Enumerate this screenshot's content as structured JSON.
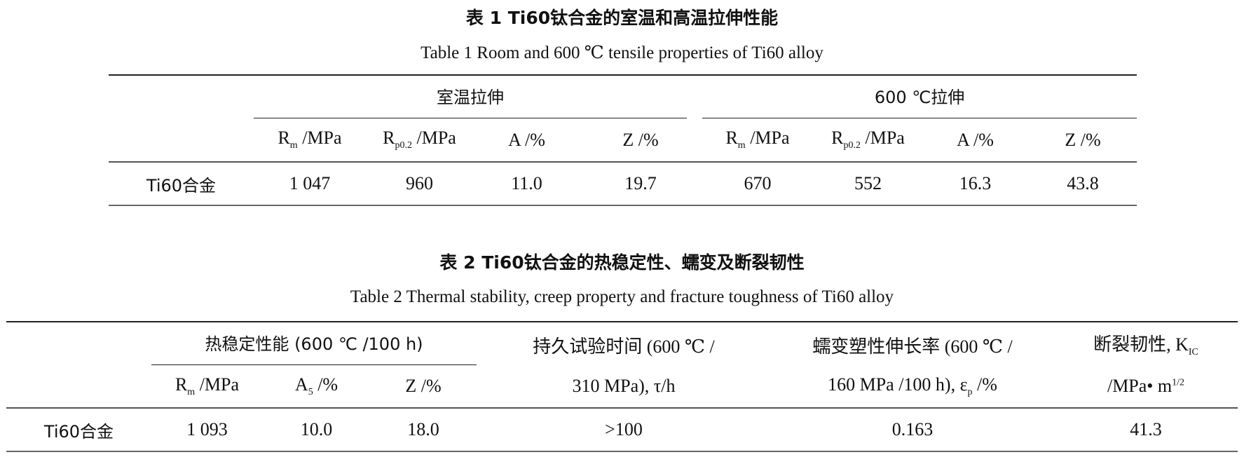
{
  "table1": {
    "title_cn": "表 1  Ti60钛合金的室温和高温拉伸性能",
    "title_en": "Table 1   Room and 600 ℃  tensile properties of Ti60 alloy",
    "groups": [
      "室温拉伸",
      "600 ℃拉伸"
    ],
    "columns": [
      {
        "base": "R",
        "sub": "m",
        "unit": " /MPa"
      },
      {
        "base": "R",
        "sub": "p0.2",
        "unit": " /MPa"
      },
      {
        "base": "A",
        "sub": "",
        "unit": " /%"
      },
      {
        "base": "Z",
        "sub": "",
        "unit": " /%"
      },
      {
        "base": "R",
        "sub": "m",
        "unit": " /MPa"
      },
      {
        "base": "R",
        "sub": "p0.2",
        "unit": " /MPa"
      },
      {
        "base": "A",
        "sub": "",
        "unit": " /%"
      },
      {
        "base": "Z",
        "sub": "",
        "unit": " /%"
      }
    ],
    "row_label": "Ti60合金",
    "values": [
      "1 047",
      "960",
      "11.0",
      "19.7",
      "670",
      "552",
      "16.3",
      "43.8"
    ]
  },
  "table2": {
    "title_cn": "表 2  Ti60钛合金的热稳定性、蠕变及断裂韧性",
    "title_en": "Table 2   Thermal stability,  creep property and fracture toughness of Ti60 alloy",
    "group": "热稳定性能 (600 ℃ /100 h)",
    "columns": [
      {
        "base": "R",
        "sub": "m",
        "unit": " /MPa"
      },
      {
        "base": "A",
        "sub": "5",
        "unit": " /%"
      },
      {
        "base": "Z",
        "sub": "",
        "unit": " /%"
      }
    ],
    "col_endurance": {
      "line1": "持久试验时间 (600 ℃ /",
      "line2": "310 MPa),  τ/h"
    },
    "col_creep": {
      "line1": "蠕变塑性伸长率 (600 ℃ /",
      "line2a": "160 MPa /100 h),  ε",
      "line2sub": "p",
      "line2b": " /%"
    },
    "col_toughness": {
      "line1": "断裂韧性,  K",
      "line1sub": "IC",
      "line2": "/MPa• m",
      "line2sup": "1/2"
    },
    "row_label": "Ti60合金",
    "values": [
      "1 093",
      "10.0",
      "18.0",
      ">100",
      "0.163",
      "41.3"
    ]
  }
}
